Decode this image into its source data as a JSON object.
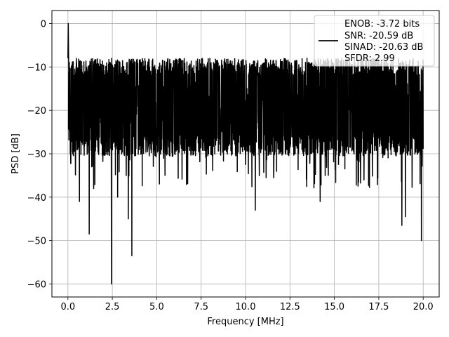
{
  "chart_data": {
    "type": "line",
    "xlabel": "Frequency [MHz]",
    "ylabel": "PSD [dB]",
    "xlim": [
      -0.9,
      20.9
    ],
    "ylim": [
      -63,
      3
    ],
    "xticks": [
      0.0,
      2.5,
      5.0,
      7.5,
      10.0,
      12.5,
      15.0,
      17.5,
      20.0
    ],
    "xtick_labels": [
      "0.0",
      "2.5",
      "5.0",
      "7.5",
      "10.0",
      "12.5",
      "15.0",
      "17.5",
      "20.0"
    ],
    "yticks": [
      0,
      -10,
      -20,
      -30,
      -40,
      -50,
      -60
    ],
    "ytick_labels": [
      "0",
      "−10",
      "−20",
      "−30",
      "−40",
      "−50",
      "−60"
    ],
    "grid": true,
    "legend": {
      "position": "upper-right",
      "entries": [
        "ENOB: -3.72 bits",
        "SNR: -20.59 dB",
        "SINAD: -20.63 dB",
        "SFDR: 2.99"
      ]
    },
    "series": [
      {
        "color": "#000000",
        "x_start": 0.0,
        "x_end": 20.0,
        "baseline": -20,
        "upper_envelope": -10,
        "lower_envelope": -28,
        "peak": {
          "x": 0.02,
          "y": 0
        },
        "dips": [
          {
            "x": 0.65,
            "y": -41
          },
          {
            "x": 1.2,
            "y": -48.5
          },
          {
            "x": 1.45,
            "y": -38
          },
          {
            "x": 2.8,
            "y": -40
          },
          {
            "x": 2.45,
            "y": -60
          },
          {
            "x": 3.4,
            "y": -45
          },
          {
            "x": 3.6,
            "y": -53.5
          },
          {
            "x": 10.55,
            "y": -43
          },
          {
            "x": 14.2,
            "y": -41
          },
          {
            "x": 18.8,
            "y": -46.5
          },
          {
            "x": 19.0,
            "y": -44.5
          },
          {
            "x": 19.9,
            "y": -50
          }
        ]
      }
    ]
  }
}
